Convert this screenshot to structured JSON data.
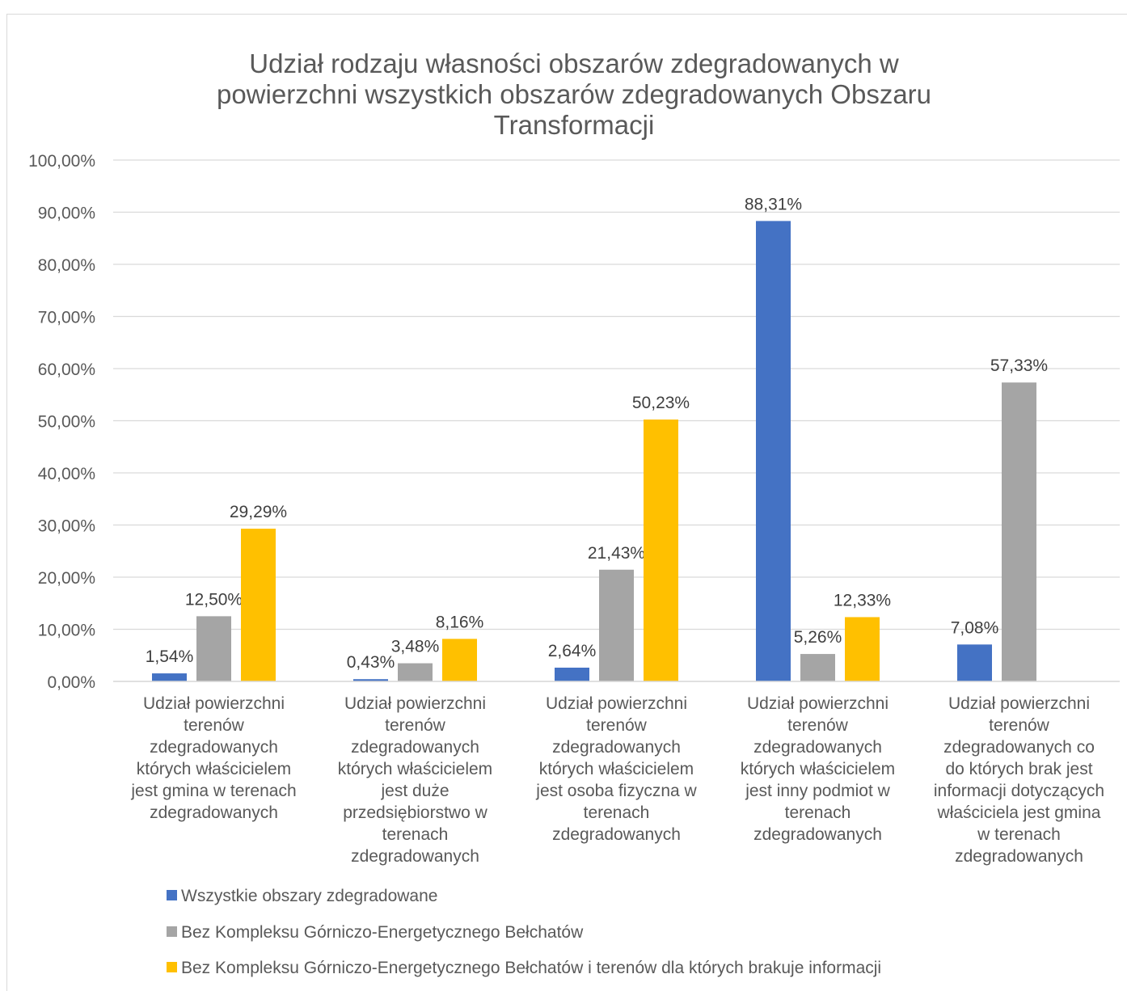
{
  "chart_data": {
    "type": "bar",
    "title": "Udział rodzaju własności obszarów zdegradowanych w powierzchni wszystkich obszarów zdegradowanych Obszaru Transformacji",
    "title_lines": [
      "Udział rodzaju własności obszarów zdegradowanych w",
      "powierzchni wszystkich obszarów zdegradowanych Obszaru",
      "Transformacji"
    ],
    "categories": [
      "Udział powierzchni terenów zdegradowanych których właścicielem jest gmina w terenach zdegradowanych",
      "Udział powierzchni terenów zdegradowanych których właścicielem jest duże przedsiębiorstwo w terenach zdegradowanych",
      "Udział powierzchni terenów zdegradowanych których właścicielem jest osoba fizyczna w terenach zdegradowanych",
      "Udział powierzchni terenów zdegradowanych których właścicielem jest inny podmiot w terenach zdegradowanych",
      "Udział powierzchni terenów zdegradowanych co do których brak jest informacji dotyczących właściciela jest gmina w terenach zdegradowanych"
    ],
    "category_lines": [
      [
        "Udział powierzchni",
        "terenów",
        "zdegradowanych",
        "których właścicielem",
        "jest gmina w terenach",
        "zdegradowanych"
      ],
      [
        "Udział powierzchni",
        "terenów",
        "zdegradowanych",
        "których właścicielem",
        "jest duże",
        "przedsiębiorstwo w",
        "terenach",
        "zdegradowanych"
      ],
      [
        "Udział powierzchni",
        "terenów",
        "zdegradowanych",
        "których właścicielem",
        "jest osoba fizyczna w",
        "terenach",
        "zdegradowanych"
      ],
      [
        "Udział powierzchni",
        "terenów",
        "zdegradowanych",
        "których właścicielem",
        "jest inny podmiot w",
        "terenach",
        "zdegradowanych"
      ],
      [
        "Udział powierzchni",
        "terenów",
        "zdegradowanych co",
        "do których brak jest",
        "informacji dotyczących",
        "właściciela jest gmina",
        "w terenach",
        "zdegradowanych"
      ]
    ],
    "series": [
      {
        "name": "Wszystkie obszary zdegradowane",
        "color": "#4472c4",
        "values": [
          1.54,
          0.43,
          2.64,
          88.31,
          7.08
        ],
        "labels": [
          "1,54%",
          "0,43%",
          "2,64%",
          "88,31%",
          "7,08%"
        ]
      },
      {
        "name": "Bez Kompleksu Górniczo-Energetycznego Bełchatów",
        "color": "#a5a5a5",
        "values": [
          12.5,
          3.48,
          21.43,
          5.26,
          57.33
        ],
        "labels": [
          "12,50%",
          "3,48%",
          "21,43%",
          "5,26%",
          "57,33%"
        ]
      },
      {
        "name": "Bez Kompleksu Górniczo-Energetycznego Bełchatów i terenów dla których brakuje informacji",
        "color": "#ffc000",
        "values": [
          29.29,
          8.16,
          50.23,
          12.33,
          null
        ],
        "labels": [
          "29,29%",
          "8,16%",
          "50,23%",
          "12,33%",
          ""
        ]
      }
    ],
    "y_ticks": [
      "0,00%",
      "10,00%",
      "20,00%",
      "30,00%",
      "40,00%",
      "50,00%",
      "60,00%",
      "70,00%",
      "80,00%",
      "90,00%",
      "100,00%"
    ],
    "ylim": [
      0,
      100
    ],
    "grid": true,
    "legend_position": "bottom",
    "gridline_color": "#d9d9d9",
    "axis_color": "#d9d9d9"
  }
}
